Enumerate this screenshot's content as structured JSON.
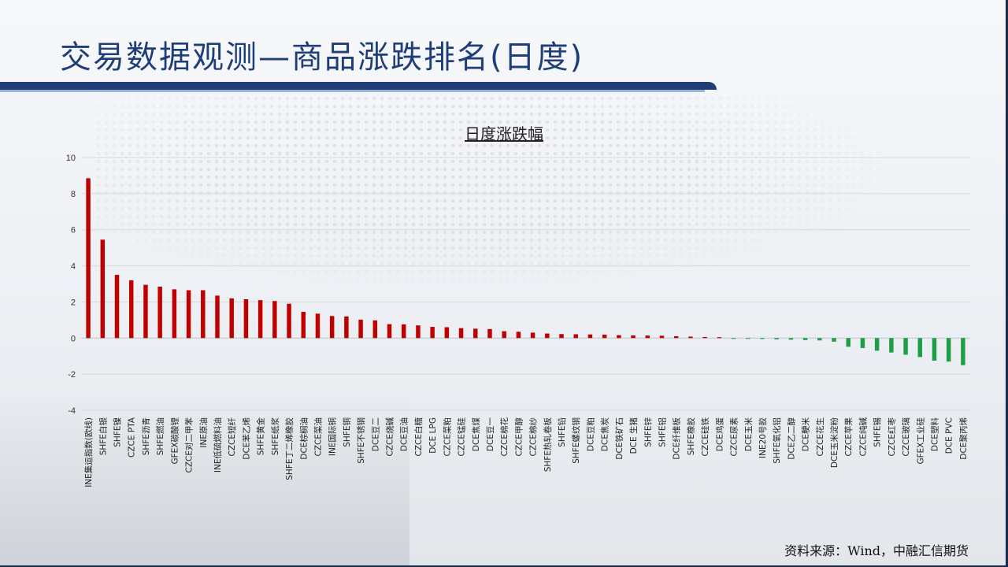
{
  "page": {
    "title": "交易数据观测—商品涨跌排名(日度)",
    "source": "资料来源：Wind，中融汇信期货"
  },
  "colors": {
    "title": "#1f3e78",
    "positive": "#c00000",
    "negative": "#1e9e47",
    "grid": "#d6d8dc",
    "text": "#222222"
  },
  "chart_data": {
    "type": "bar",
    "title": "日度涨跌幅",
    "xlabel": "",
    "ylabel": "",
    "ylim": [
      -4,
      10
    ],
    "yticks": [
      -4,
      -2,
      0,
      2,
      4,
      6,
      8,
      10
    ],
    "grid": true,
    "legend": "none",
    "categories": [
      "INE集运指数(欧线)",
      "SHFE白银",
      "SHFE镍",
      "CZCE PTA",
      "SHFE沥青",
      "SHFE燃油",
      "GFEX碳酸锂",
      "CZCE对二甲苯",
      "INE原油",
      "INE低硫燃料油",
      "CZCE短纤",
      "DCE苯乙烯",
      "SHFE黄金",
      "SHFE纸浆",
      "SHFE丁二烯橡胶",
      "DCE棕榈油",
      "CZCE菜油",
      "INE国际铜",
      "SHFE铜",
      "SHFE不锈钢",
      "DCE豆二",
      "CZCE烧碱",
      "DCE豆油",
      "CZCE白糖",
      "DCE LPG",
      "CZCE菜粕",
      "CZCE锰硅",
      "DCE焦煤",
      "DCE豆一",
      "CZCE棉花",
      "CZCE甲醇",
      "CZCE棉纱",
      "SHFE热轧卷板",
      "SHFE铅",
      "SHFE螺纹钢",
      "DCE豆粕",
      "DCE焦炭",
      "DCE铁矿石",
      "DCE 生猪",
      "SHFE锌",
      "SHFE铝",
      "DCE纤维板",
      "SHFE橡胶",
      "CZCE硅铁",
      "DCE鸡蛋",
      "CZCE尿素",
      "DCE玉米",
      "INE20号胶",
      "SHFE氧化铝",
      "DCE乙二醇",
      "DCE粳米",
      "CZCE花生",
      "DCE玉米淀粉",
      "CZCE苹果",
      "CZCE纯碱",
      "SHFE锡",
      "CZCE红枣",
      "CZCE玻璃",
      "GFEX工业硅",
      "DCE塑料",
      "DCE PVC",
      "DCE聚丙烯"
    ],
    "values": [
      8.85,
      5.45,
      3.5,
      3.2,
      2.95,
      2.85,
      2.7,
      2.65,
      2.65,
      2.35,
      2.2,
      2.15,
      2.1,
      2.05,
      1.9,
      1.45,
      1.35,
      1.22,
      1.2,
      1.02,
      0.98,
      0.77,
      0.76,
      0.7,
      0.62,
      0.6,
      0.55,
      0.52,
      0.5,
      0.38,
      0.35,
      0.3,
      0.25,
      0.22,
      0.21,
      0.2,
      0.19,
      0.16,
      0.15,
      0.14,
      0.13,
      0.1,
      0.08,
      0.06,
      0.05,
      -0.02,
      -0.03,
      -0.05,
      -0.07,
      -0.09,
      -0.11,
      -0.13,
      -0.2,
      -0.48,
      -0.55,
      -0.7,
      -0.8,
      -0.92,
      -1.05,
      -1.25,
      -1.3,
      -1.5
    ]
  }
}
